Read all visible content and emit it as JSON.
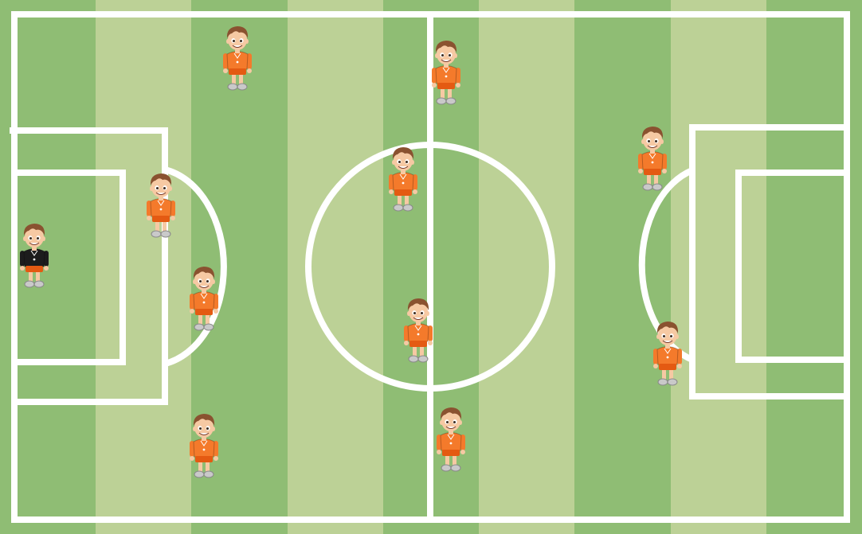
{
  "pitch": {
    "colors": {
      "stripe_dark": "#8fbd74",
      "stripe_light": "#bcd196",
      "lines": "#ffffff"
    }
  },
  "kit_colors": {
    "outfield_shirt": "#f47a2b",
    "outfield_shorts": "#e45a12",
    "goalkeeper_shirt": "#1c1c1c",
    "goalkeeper_shorts": "#e45a12",
    "hair": "#8a5230",
    "skin": "#f6c9a3",
    "shoes": "#c9c9c9"
  },
  "players": [
    {
      "id": "goalkeeper",
      "role": "goalkeeper",
      "kit": "black"
    },
    {
      "id": "defender-1",
      "role": "outfield",
      "kit": "orange"
    },
    {
      "id": "defender-2",
      "role": "outfield",
      "kit": "orange"
    },
    {
      "id": "defender-3",
      "role": "outfield",
      "kit": "orange"
    },
    {
      "id": "defender-4",
      "role": "outfield",
      "kit": "orange"
    },
    {
      "id": "midfielder-1",
      "role": "outfield",
      "kit": "orange"
    },
    {
      "id": "midfielder-2",
      "role": "outfield",
      "kit": "orange"
    },
    {
      "id": "midfielder-3",
      "role": "outfield",
      "kit": "orange"
    },
    {
      "id": "midfielder-4",
      "role": "outfield",
      "kit": "orange"
    },
    {
      "id": "forward-1",
      "role": "outfield",
      "kit": "orange"
    },
    {
      "id": "forward-2",
      "role": "outfield",
      "kit": "orange"
    }
  ]
}
